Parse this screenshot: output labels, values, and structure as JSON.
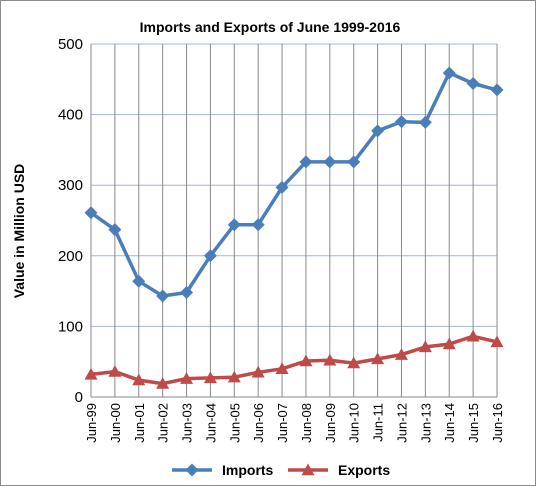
{
  "chart_data": {
    "type": "line",
    "title": "Imports and Exports of  June 1999-2016",
    "ylabel": "Value in  Million  USD",
    "xlabel": "",
    "ylim": [
      0,
      500
    ],
    "yticks": [
      0,
      100,
      200,
      300,
      400,
      500
    ],
    "grid": true,
    "legend_position": "bottom",
    "categories": [
      "Jun-99",
      "Jun-00",
      "Jun-01",
      "Jun-02",
      "Jun-03",
      "Jun-04",
      "Jun-05",
      "Jun-06",
      "Jun-07",
      "Jun-08",
      "Jun-09",
      "Jun-10",
      "Jun-11",
      "Jun-12",
      "Jun-13",
      "Jun-14",
      "Jun-15",
      "Jun-16"
    ],
    "series": [
      {
        "name": "Imports",
        "color": "#4a7ebb",
        "marker": "diamond",
        "values": [
          261,
          237,
          164,
          143,
          148,
          200,
          244,
          244,
          297,
          333,
          333,
          333,
          377,
          390,
          389,
          459,
          444,
          435
        ]
      },
      {
        "name": "Exports",
        "color": "#be4b48",
        "marker": "triangle",
        "values": [
          32,
          36,
          24,
          19,
          26,
          27,
          28,
          35,
          40,
          51,
          52,
          48,
          54,
          60,
          71,
          75,
          86,
          78
        ]
      }
    ]
  }
}
